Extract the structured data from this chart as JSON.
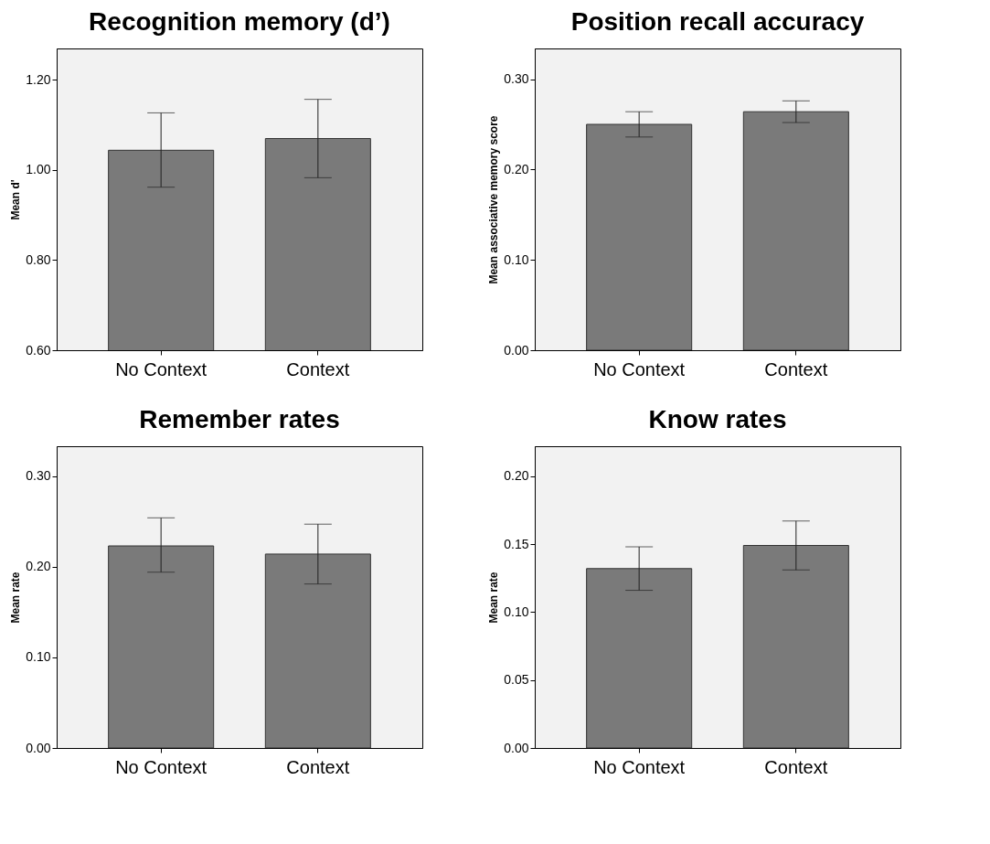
{
  "chart_data": [
    {
      "type": "bar",
      "title": "Recognition memory (d’)",
      "ylabel": "Mean d'",
      "categories": [
        "No Context",
        "Context"
      ],
      "values": [
        1.044,
        1.07
      ],
      "errors": [
        [
          0.962,
          1.127
        ],
        [
          0.983,
          1.157
        ]
      ],
      "color": "#7a7a7a",
      "ylim": [
        0.6,
        1.27
      ],
      "yticks": [
        {
          "value": 0.6,
          "label": "0.60"
        },
        {
          "value": 0.8,
          "label": "0.80"
        },
        {
          "value": 1.0,
          "label": "1.00"
        },
        {
          "value": 1.2,
          "label": "1.20"
        }
      ],
      "grid": false
    },
    {
      "type": "bar",
      "title": "Position recall accuracy",
      "ylabel": "Mean associative memory score",
      "categories": [
        "No Context",
        "Context"
      ],
      "values": [
        0.25,
        0.264
      ],
      "errors": [
        [
          0.236,
          0.264
        ],
        [
          0.252,
          0.276
        ]
      ],
      "color": "#7a7a7a",
      "ylim": [
        0,
        0.334
      ],
      "yticks": [
        {
          "value": 0,
          "label": "0.00"
        },
        {
          "value": 0.1,
          "label": "0.10"
        },
        {
          "value": 0.2,
          "label": "0.20"
        },
        {
          "value": 0.3,
          "label": "0.30"
        }
      ],
      "grid": false
    },
    {
      "type": "bar",
      "title": "Remember rates",
      "ylabel": "Mean rate",
      "categories": [
        "No Context",
        "Context"
      ],
      "values": [
        0.223,
        0.214
      ],
      "errors": [
        [
          0.194,
          0.254
        ],
        [
          0.181,
          0.247
        ]
      ],
      "color": "#7a7a7a",
      "ylim": [
        0,
        0.333
      ],
      "yticks": [
        {
          "value": 0,
          "label": "0.00"
        },
        {
          "value": 0.1,
          "label": "0.10"
        },
        {
          "value": 0.2,
          "label": "0.20"
        },
        {
          "value": 0.3,
          "label": "0.30"
        }
      ],
      "grid": false
    },
    {
      "type": "bar",
      "title": "Know rates",
      "ylabel": "Mean rate",
      "categories": [
        "No Context",
        "Context"
      ],
      "values": [
        0.132,
        0.149
      ],
      "errors": [
        [
          0.116,
          0.148
        ],
        [
          0.131,
          0.167
        ]
      ],
      "color": "#7a7a7a",
      "ylim": [
        0,
        0.222
      ],
      "yticks": [
        {
          "value": 0,
          "label": "0.00"
        },
        {
          "value": 0.05,
          "label": "0.05"
        },
        {
          "value": 0.1,
          "label": "0.10"
        },
        {
          "value": 0.15,
          "label": "0.15"
        },
        {
          "value": 0.2,
          "label": "0.20"
        }
      ],
      "grid": false
    }
  ]
}
